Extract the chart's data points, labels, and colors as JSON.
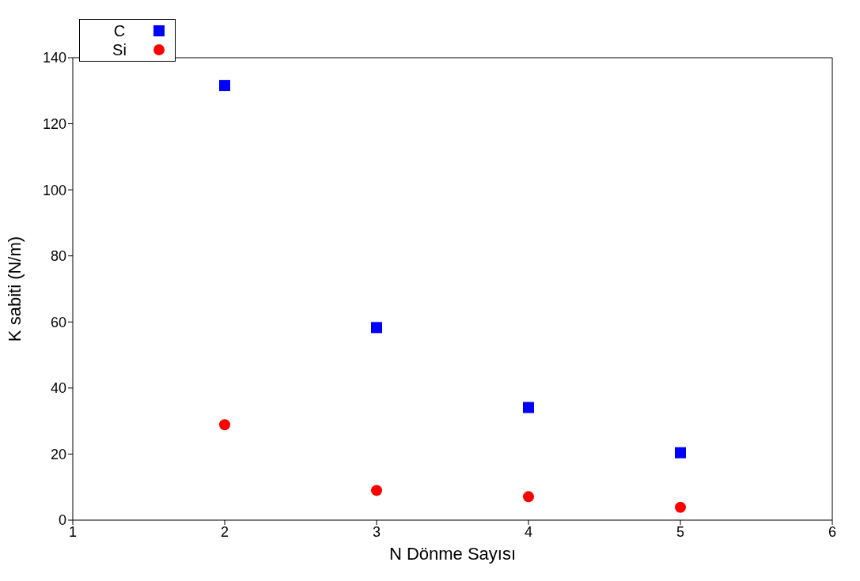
{
  "chart_data": {
    "type": "scatter",
    "xlabel": "N Dönme Sayısı",
    "ylabel": "K sabiti (N/m)",
    "xlim": [
      1,
      6
    ],
    "xticks": [
      1,
      2,
      3,
      4,
      5,
      6
    ],
    "ylim": [
      0,
      140
    ],
    "yticks": [
      0,
      20,
      40,
      60,
      80,
      100,
      120,
      140
    ],
    "grid": false,
    "legend": "top left",
    "x": [
      2,
      3,
      4,
      5
    ],
    "series": [
      {
        "name": "C",
        "color": "#0000ff",
        "marker": "square",
        "values": [
          131.6,
          58.3,
          34.1,
          20.4
        ]
      },
      {
        "name": "Si",
        "color": "#ff0000",
        "marker": "circle",
        "values": [
          28.9,
          9.0,
          7.1,
          3.9
        ]
      }
    ]
  }
}
